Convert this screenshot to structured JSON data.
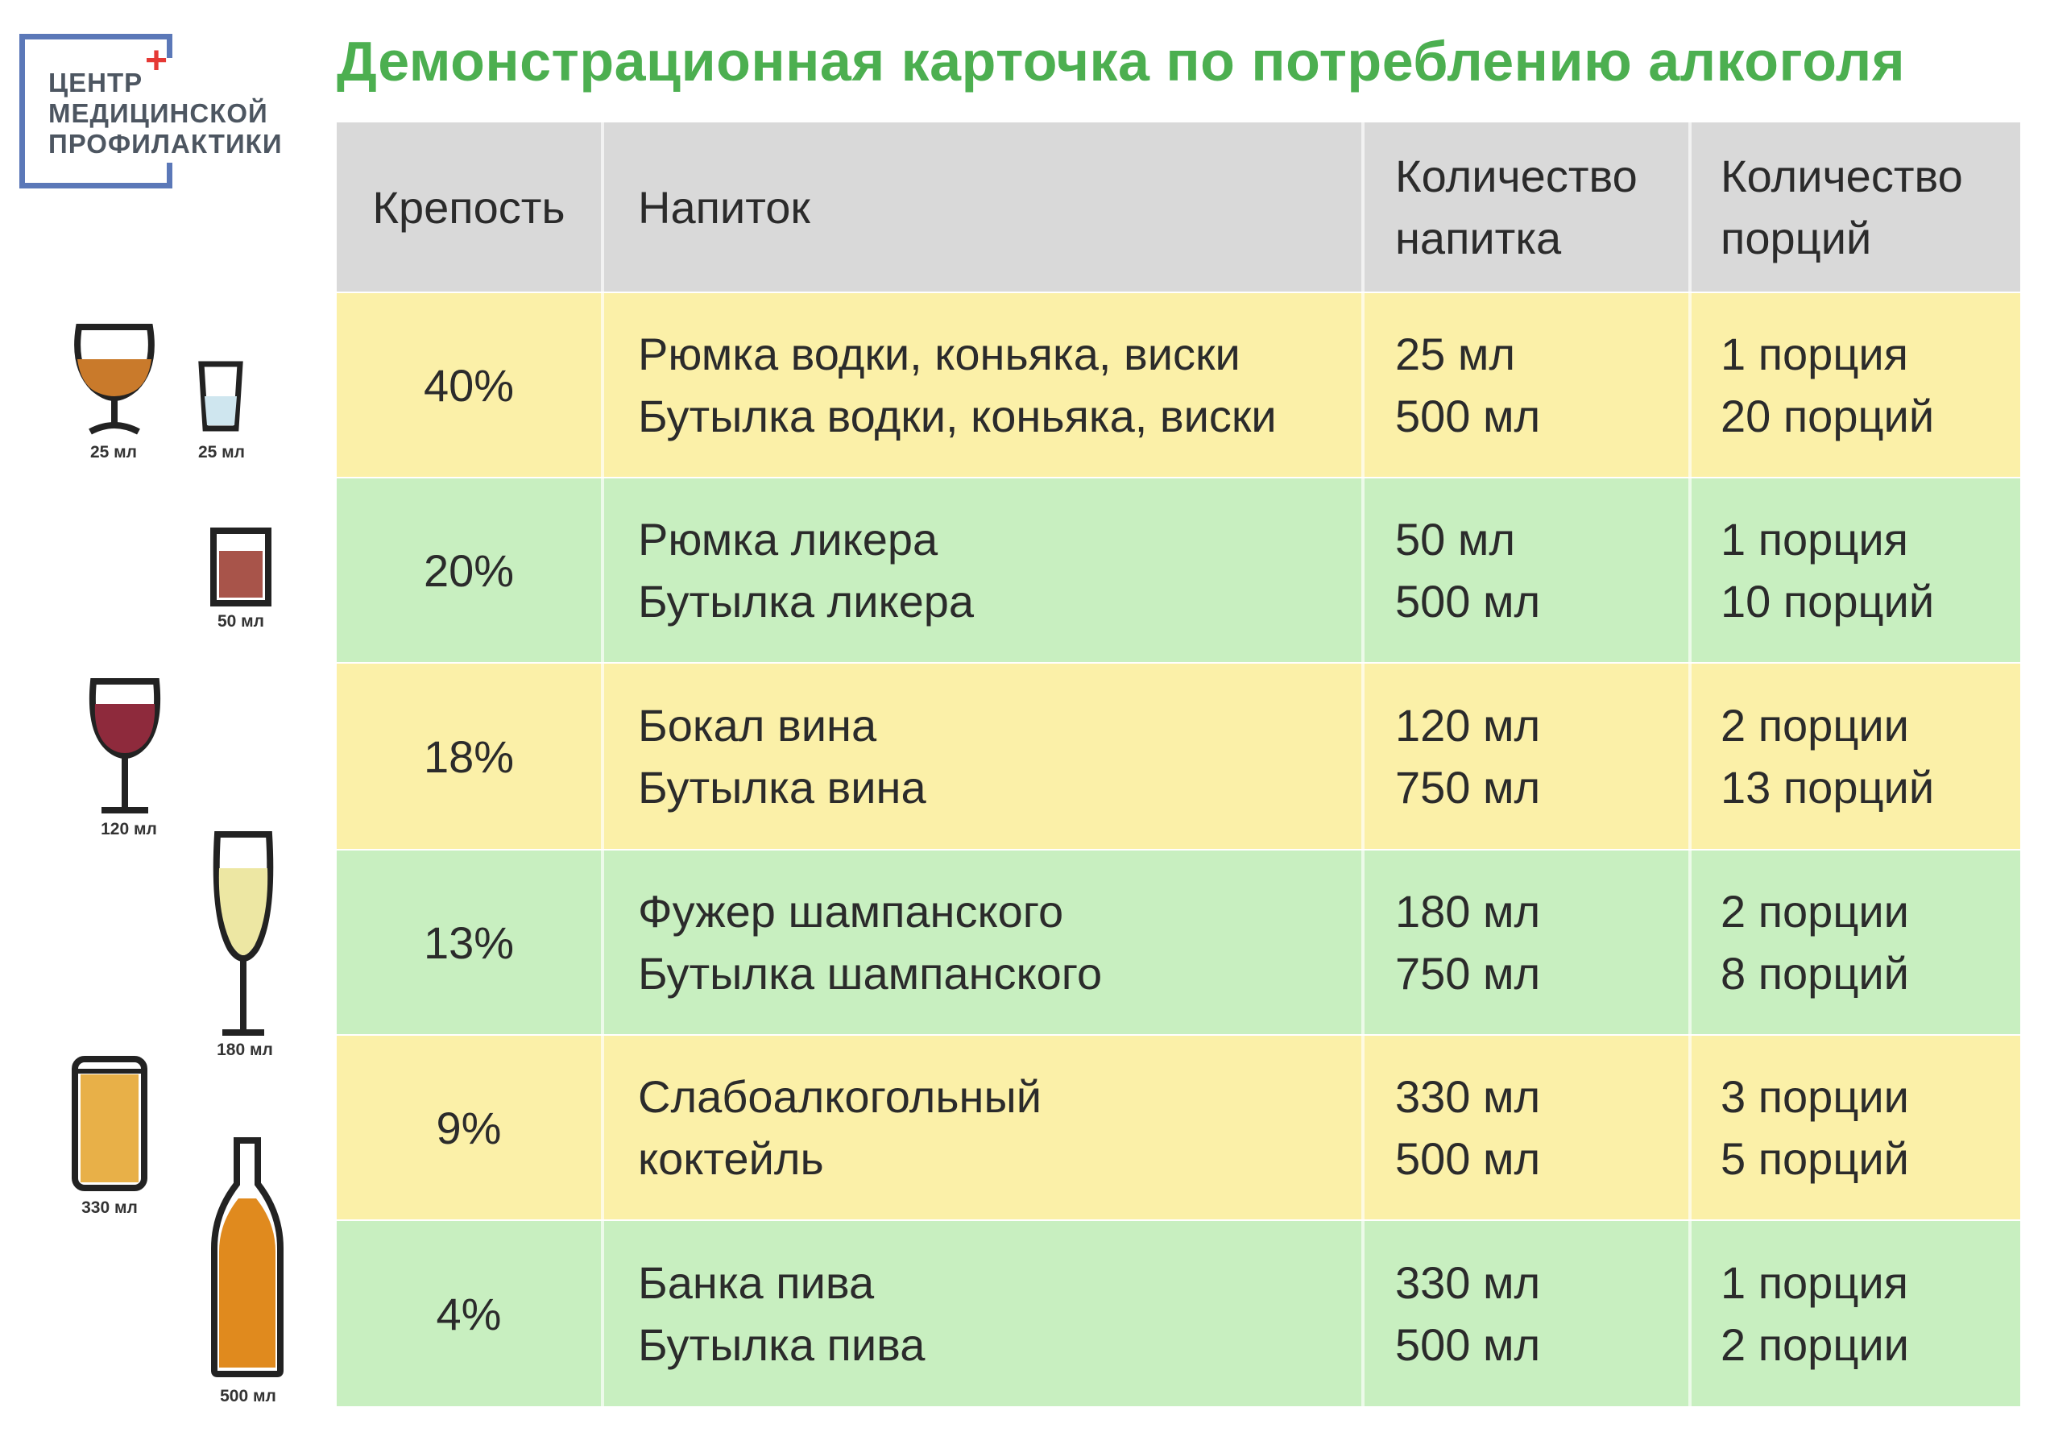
{
  "logo": {
    "line1": "ЦЕНТР",
    "line2": "МЕДИЦИНСКОЙ",
    "line3": "ПРОФИЛАКТИКИ"
  },
  "title": "Демонстрационная карточка по потреблению алкоголя",
  "table": {
    "headers": {
      "strength": "Крепость",
      "drink": "Напиток",
      "amount_line1": "Количество",
      "amount_line2": "напитка",
      "portions_line1": "Количество",
      "portions_line2": "порций"
    },
    "rows": [
      {
        "strength": "40%",
        "drinks": [
          "Рюмка водки, коньяка, виски",
          "Бутылка водки, коньяка, виски"
        ],
        "amounts": [
          "25 мл",
          "500 мл"
        ],
        "portions": [
          "1 порция",
          "20 порций"
        ]
      },
      {
        "strength": "20%",
        "drinks": [
          "Рюмка ликера",
          "Бутылка ликера"
        ],
        "amounts": [
          "50 мл",
          "500 мл"
        ],
        "portions": [
          "1 порция",
          "10 порций"
        ]
      },
      {
        "strength": "18%",
        "drinks": [
          "Бокал вина",
          "Бутылка вина"
        ],
        "amounts": [
          "120 мл",
          "750 мл"
        ],
        "portions": [
          "2 порции",
          "13 порций"
        ]
      },
      {
        "strength": "13%",
        "drinks": [
          "Фужер шампанского",
          "Бутылка шампанского"
        ],
        "amounts": [
          "180 мл",
          "750 мл"
        ],
        "portions": [
          "2 порции",
          "8 порций"
        ]
      },
      {
        "strength": "9%",
        "drinks": [
          "Слабоалкогольный",
          "коктейль"
        ],
        "amounts": [
          "330 мл",
          "500 мл"
        ],
        "portions": [
          "3 порции",
          "5 порций"
        ]
      },
      {
        "strength": "4%",
        "drinks": [
          "Банка пива",
          "Бутылка пива"
        ],
        "amounts": [
          "330 мл",
          "500 мл"
        ],
        "portions": [
          "1 порция",
          "2 порции"
        ]
      }
    ]
  },
  "icons": {
    "snifter": {
      "icon": "brandy-glass-icon",
      "volume": "25 мл",
      "color": "#c97a2b"
    },
    "shot": {
      "icon": "shot-glass-icon",
      "volume": "25 мл",
      "color": "#cfe6ef"
    },
    "liqueur": {
      "icon": "liqueur-glass-icon",
      "volume": "50 мл",
      "color": "#a8544a"
    },
    "wine": {
      "icon": "wine-glass-icon",
      "volume": "120 мл",
      "color": "#8e2a3c"
    },
    "champagne": {
      "icon": "champagne-flute-icon",
      "volume": "180 мл",
      "color": "#ede7a3"
    },
    "can": {
      "icon": "can-icon",
      "volume": "330 мл",
      "color": "#e8b048"
    },
    "bottle": {
      "icon": "beer-bottle-icon",
      "volume": "500 мл",
      "color": "#e08a1e"
    }
  },
  "colors": {
    "title_green": "#4caf50",
    "header_gray": "#d9d9d9",
    "row_yellow": "#fbf0a8",
    "row_green": "#c8efc0",
    "logo_blue": "#5b78b8",
    "logo_red": "#e53935"
  }
}
